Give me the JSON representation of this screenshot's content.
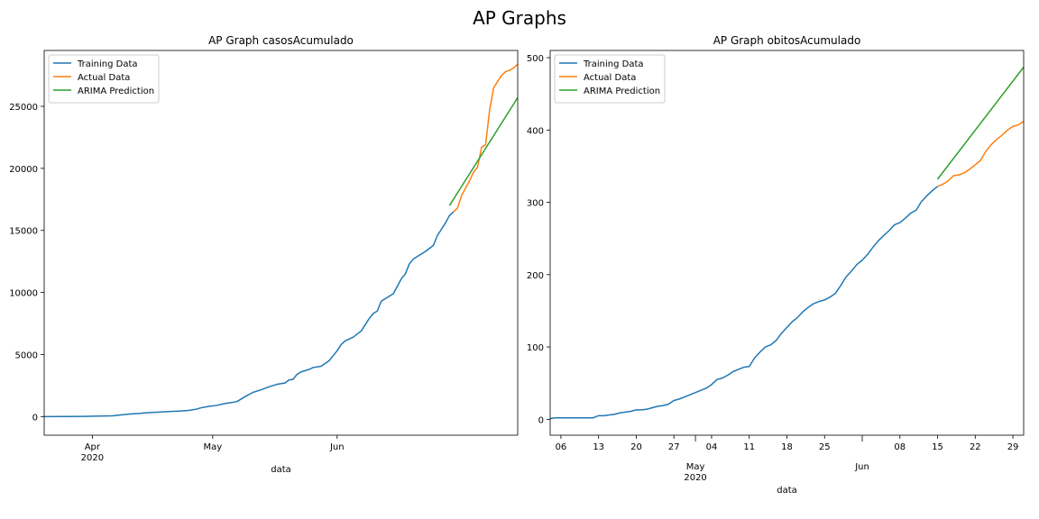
{
  "figure_title": "AP Graphs",
  "chart_data": [
    {
      "type": "line",
      "title": "AP Graph casosAcumulado",
      "xlabel": "data",
      "ylabel": "",
      "xlim": [
        "2020-03-20",
        "2020-06-30"
      ],
      "ylim": [
        -1500,
        29500
      ],
      "grid": false,
      "legend_position": "top-left",
      "x_tick_labels": [
        {
          "date": "2020-04-01",
          "label": "Apr",
          "sublabel": "2020"
        },
        {
          "date": "2020-05-01",
          "label": "May",
          "sublabel": ""
        },
        {
          "date": "2020-06-01",
          "label": "Jun",
          "sublabel": ""
        }
      ],
      "y_ticks": [
        0,
        5000,
        10000,
        15000,
        20000,
        25000
      ],
      "series": [
        {
          "name": "Training Data",
          "color": "#1f77b4",
          "points": [
            [
              "2020-03-20",
              1
            ],
            [
              "2020-03-25",
              5
            ],
            [
              "2020-03-30",
              15
            ],
            [
              "2020-04-03",
              40
            ],
            [
              "2020-04-06",
              60
            ],
            [
              "2020-04-07",
              100
            ],
            [
              "2020-04-10",
              200
            ],
            [
              "2020-04-13",
              260
            ],
            [
              "2020-04-14",
              300
            ],
            [
              "2020-04-17",
              350
            ],
            [
              "2020-04-20",
              410
            ],
            [
              "2020-04-23",
              450
            ],
            [
              "2020-04-25",
              500
            ],
            [
              "2020-04-27",
              600
            ],
            [
              "2020-04-28",
              700
            ],
            [
              "2020-04-30",
              820
            ],
            [
              "2020-05-02",
              900
            ],
            [
              "2020-05-04",
              1050
            ],
            [
              "2020-05-07",
              1200
            ],
            [
              "2020-05-09",
              1600
            ],
            [
              "2020-05-11",
              1950
            ],
            [
              "2020-05-13",
              2150
            ],
            [
              "2020-05-15",
              2400
            ],
            [
              "2020-05-17",
              2600
            ],
            [
              "2020-05-19",
              2700
            ],
            [
              "2020-05-20",
              2950
            ],
            [
              "2020-05-21",
              3000
            ],
            [
              "2020-05-22",
              3400
            ],
            [
              "2020-05-23",
              3600
            ],
            [
              "2020-05-25",
              3800
            ],
            [
              "2020-05-26",
              3950
            ],
            [
              "2020-05-28",
              4050
            ],
            [
              "2020-05-30",
              4500
            ],
            [
              "2020-06-01",
              5300
            ],
            [
              "2020-06-02",
              5800
            ],
            [
              "2020-06-03",
              6100
            ],
            [
              "2020-06-05",
              6400
            ],
            [
              "2020-06-07",
              6900
            ],
            [
              "2020-06-08",
              7400
            ],
            [
              "2020-06-09",
              7900
            ],
            [
              "2020-06-10",
              8300
            ],
            [
              "2020-06-11",
              8500
            ],
            [
              "2020-06-12",
              9300
            ],
            [
              "2020-06-13",
              9500
            ],
            [
              "2020-06-15",
              9900
            ],
            [
              "2020-06-16",
              10500
            ],
            [
              "2020-06-17",
              11100
            ],
            [
              "2020-06-18",
              11500
            ],
            [
              "2020-06-19",
              12300
            ],
            [
              "2020-06-20",
              12700
            ],
            [
              "2020-06-22",
              13100
            ],
            [
              "2020-06-23",
              13300
            ],
            [
              "2020-06-25",
              13800
            ],
            [
              "2020-06-26",
              14600
            ],
            [
              "2020-06-27",
              15100
            ],
            [
              "2020-06-28",
              15600
            ],
            [
              "2020-06-29",
              16200
            ],
            [
              "2020-06-30",
              16500
            ]
          ]
        }
      ],
      "series_note": "see extended series below"
    },
    {
      "type": "line",
      "title": "AP Graph obitosAcumulado",
      "xlabel": "data",
      "ylabel": "",
      "xlim": [
        "2020-04-04",
        "2020-06-29"
      ],
      "ylim": [
        -22,
        510
      ],
      "grid": false,
      "legend_position": "top-left",
      "x_tick_labels": [
        {
          "date": "2020-04-06",
          "label": "06",
          "sublabel": ""
        },
        {
          "date": "2020-04-13",
          "label": "13",
          "sublabel": ""
        },
        {
          "date": "2020-04-20",
          "label": "20",
          "sublabel": ""
        },
        {
          "date": "2020-04-27",
          "label": "27",
          "sublabel": ""
        },
        {
          "date": "2020-05-04",
          "label": "04",
          "sublabel": ""
        },
        {
          "date": "2020-05-11",
          "label": "11",
          "sublabel": ""
        },
        {
          "date": "2020-05-18",
          "label": "18",
          "sublabel": ""
        },
        {
          "date": "2020-05-25",
          "label": "25",
          "sublabel": ""
        },
        {
          "date": "2020-06-08",
          "label": "08",
          "sublabel": ""
        },
        {
          "date": "2020-06-15",
          "label": "15",
          "sublabel": ""
        },
        {
          "date": "2020-06-22",
          "label": "22",
          "sublabel": ""
        },
        {
          "date": "2020-06-29",
          "label": "29",
          "sublabel": ""
        }
      ],
      "x_month_labels": [
        {
          "date": "2020-05-01",
          "label": "May",
          "sublabel": "2020"
        },
        {
          "date": "2020-06-01",
          "label": "Jun",
          "sublabel": ""
        }
      ],
      "y_ticks": [
        0,
        100,
        200,
        300,
        400,
        500
      ],
      "series": []
    }
  ]
}
